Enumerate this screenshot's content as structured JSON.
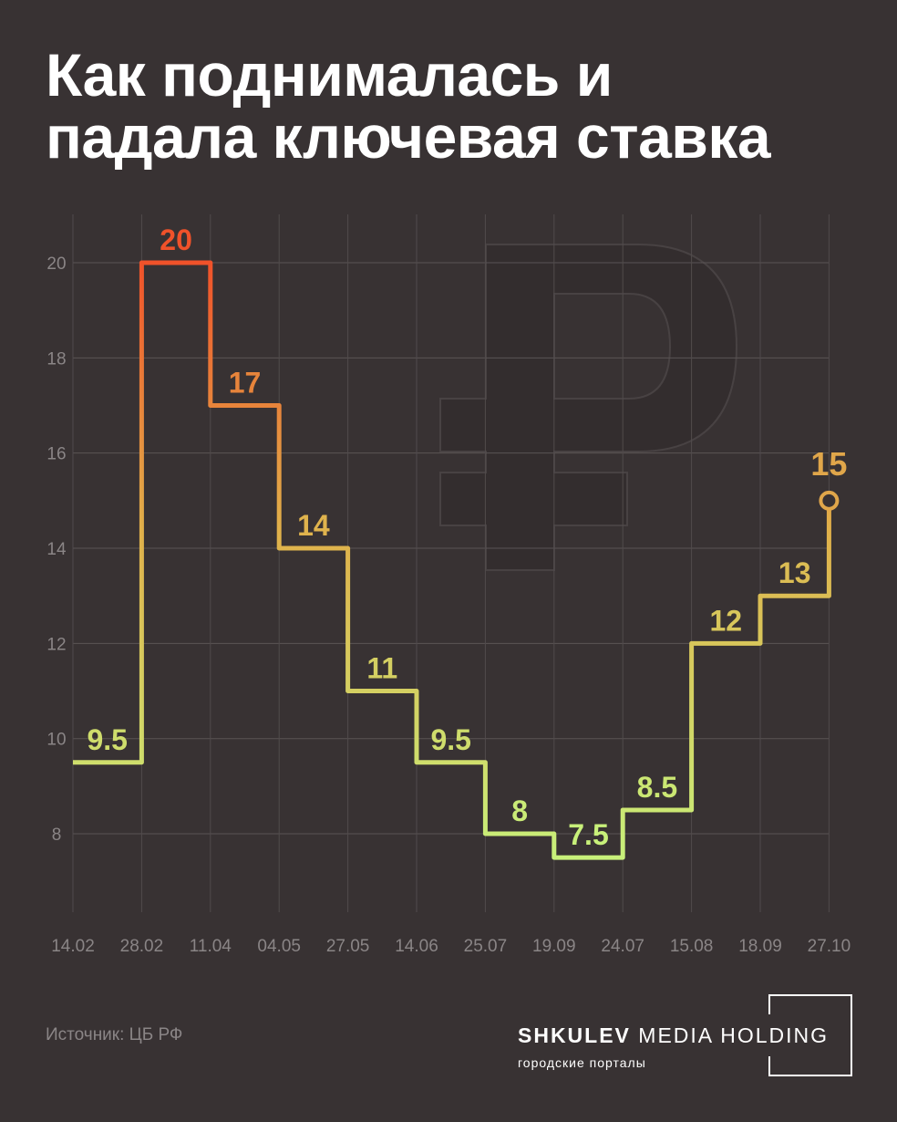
{
  "title": [
    "Как поднималась и",
    "падала ключевая ставка"
  ],
  "source": "Источник: ЦБ РФ",
  "logo": {
    "brand_bold": "SHKULEV",
    "brand_rest": "MEDIA HOLDING",
    "tagline": "городские порталы"
  },
  "colors": {
    "background": "#383233",
    "low": "#c8f07a",
    "mid": "#e0b04a",
    "high": "#f0522a"
  },
  "chart_data": {
    "type": "line",
    "step": true,
    "title": "",
    "xlabel": "",
    "ylabel": "",
    "categories": [
      "14.02",
      "28.02",
      "11.04",
      "04.05",
      "27.05",
      "14.06",
      "25.07",
      "19.09",
      "24.07",
      "15.08",
      "18.09",
      "27.10"
    ],
    "values": [
      9.5,
      20,
      17,
      14,
      11,
      9.5,
      8,
      7.5,
      8.5,
      12,
      13,
      15
    ],
    "data_labels": [
      "9.5",
      "20",
      "17",
      "14",
      "11",
      "9.5",
      "8",
      "7.5",
      "8.5",
      "12",
      "13",
      "15"
    ],
    "yticks": [
      8,
      10,
      12,
      14,
      16,
      18,
      20
    ],
    "ylim": [
      7,
      21
    ],
    "grid": true,
    "background_icon": "ruble-sign-icon"
  }
}
